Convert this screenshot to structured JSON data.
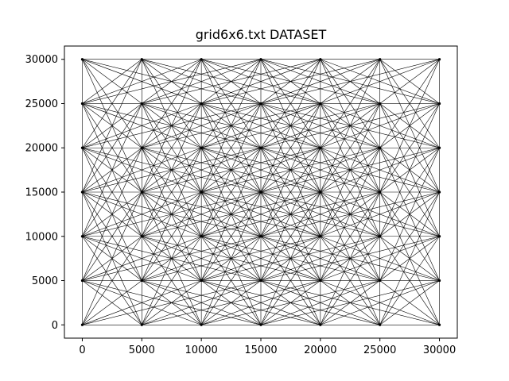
{
  "chart_data": {
    "type": "network",
    "title": "grid6x6.txt DATASET",
    "xlim": [
      -1500,
      31500
    ],
    "ylim": [
      -1500,
      31500
    ],
    "x_ticks": [
      0,
      5000,
      10000,
      15000,
      20000,
      25000,
      30000
    ],
    "y_ticks": [
      0,
      5000,
      10000,
      15000,
      20000,
      25000,
      30000
    ],
    "x_tick_labels": [
      "0",
      "5000",
      "10000",
      "15000",
      "20000",
      "25000",
      "30000"
    ],
    "y_tick_labels": [
      "0",
      "5000",
      "10000",
      "15000",
      "20000",
      "25000",
      "30000"
    ],
    "nodes_x": [
      0,
      5000,
      10000,
      15000,
      20000,
      25000,
      30000
    ],
    "nodes_y": [
      0,
      5000,
      10000,
      15000,
      20000,
      25000,
      30000
    ],
    "edge_offsets": [
      [
        1,
        0
      ],
      [
        0,
        1
      ],
      [
        1,
        1
      ],
      [
        1,
        -1
      ],
      [
        2,
        1
      ],
      [
        1,
        2
      ],
      [
        2,
        -1
      ],
      [
        1,
        -2
      ],
      [
        3,
        1
      ],
      [
        1,
        3
      ],
      [
        3,
        -1
      ],
      [
        1,
        -3
      ]
    ],
    "line_color": "#000000",
    "grid": false
  }
}
